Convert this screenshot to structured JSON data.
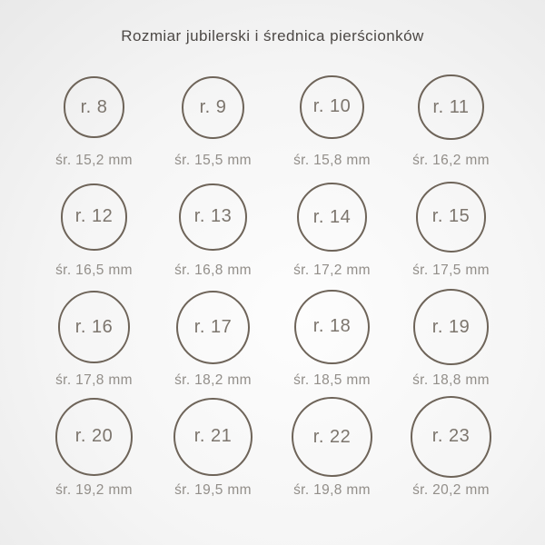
{
  "title": "Rozmiar jubilerski i średnica pierścionków",
  "colors": {
    "background_center": "#fdfdfd",
    "background_edge": "#e9e9e9",
    "title_text": "#4c4845",
    "ring_stroke": "#6e6459",
    "ring_label": "#7c756d",
    "diameter_label": "#928e89"
  },
  "rings": [
    {
      "size_label": "r. 8",
      "diameter_label": "śr. 15,2 mm",
      "diameter_mm": 15.2
    },
    {
      "size_label": "r. 9",
      "diameter_label": "śr. 15,5 mm",
      "diameter_mm": 15.5
    },
    {
      "size_label": "r. 10",
      "diameter_label": "śr. 15,8 mm",
      "diameter_mm": 15.8
    },
    {
      "size_label": "r. 11",
      "diameter_label": "śr. 16,2 mm",
      "diameter_mm": 16.2
    },
    {
      "size_label": "r. 12",
      "diameter_label": "śr. 16,5 mm",
      "diameter_mm": 16.5
    },
    {
      "size_label": "r. 13",
      "diameter_label": "śr. 16,8 mm",
      "diameter_mm": 16.8
    },
    {
      "size_label": "r. 14",
      "diameter_label": "śr. 17,2 mm",
      "diameter_mm": 17.2
    },
    {
      "size_label": "r. 15",
      "diameter_label": "śr. 17,5 mm",
      "diameter_mm": 17.5
    },
    {
      "size_label": "r. 16",
      "diameter_label": "śr. 17,8 mm",
      "diameter_mm": 17.8
    },
    {
      "size_label": "r. 17",
      "diameter_label": "śr. 18,2 mm",
      "diameter_mm": 18.2
    },
    {
      "size_label": "r. 18",
      "diameter_label": "śr. 18,5 mm",
      "diameter_mm": 18.5
    },
    {
      "size_label": "r. 19",
      "diameter_label": "śr. 18,8 mm",
      "diameter_mm": 18.8
    },
    {
      "size_label": "r. 20",
      "diameter_label": "śr. 19,2 mm",
      "diameter_mm": 19.2
    },
    {
      "size_label": "r. 21",
      "diameter_label": "śr. 19,5 mm",
      "diameter_mm": 19.5
    },
    {
      "size_label": "r. 22",
      "diameter_label": "śr. 19,8 mm",
      "diameter_mm": 19.8
    },
    {
      "size_label": "r. 23",
      "diameter_label": "śr. 20,2 mm",
      "diameter_mm": 20.2
    }
  ]
}
